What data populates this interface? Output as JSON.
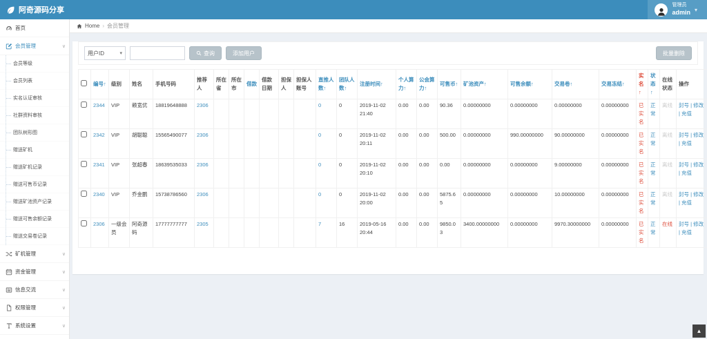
{
  "colors": {
    "navbar": "#3c8dbc",
    "link": "#3c8dbc",
    "danger": "#dd4b39",
    "offline_gray": "#cccccc",
    "button_gray": "#b7c3ca",
    "content_bg": "#ecf0f5"
  },
  "navbar": {
    "brand": "阿奇源码分享",
    "logo_icon": "leaf-icon",
    "user": {
      "role": "管理员",
      "name": "admin",
      "caret": "▾",
      "avatar_icon": "user-icon"
    }
  },
  "sidebar": {
    "collapse_glyph": "«",
    "items": [
      {
        "label": "首页",
        "icon": "dashboard",
        "caret": false,
        "active": false
      },
      {
        "label": "会员管理",
        "icon": "edit",
        "caret": true,
        "active": true,
        "expanded": true,
        "children": [
          "会员等级",
          "会员列表",
          "实名认证审核",
          "社群资料审核",
          "团队树形图",
          "赠送矿机",
          "赠送矿机记录",
          "赠送可售币记录",
          "赠送矿池资产记录",
          "赠送可售余额记录",
          "赠送交易卷记录"
        ]
      },
      {
        "label": "矿机管理",
        "icon": "shuffle",
        "caret": true,
        "active": false
      },
      {
        "label": "资金管理",
        "icon": "calendar",
        "caret": true,
        "active": false
      },
      {
        "label": "信息交流",
        "icon": "news",
        "caret": true,
        "active": false
      },
      {
        "label": "权限管理",
        "icon": "file",
        "caret": true,
        "active": false
      },
      {
        "label": "系统设置",
        "icon": "text",
        "caret": true,
        "active": false
      }
    ]
  },
  "breadcrumb": {
    "home_icon": "home-icon",
    "home_label": "Home",
    "separator": "›",
    "current": "会员管理"
  },
  "toolbar": {
    "filter": {
      "selected": "用户ID",
      "caret": "▾"
    },
    "search_value": "",
    "search_button_label": "查询",
    "search_icon": "search-icon",
    "add_button_label": "添加用户",
    "bulk_delete_label": "批量删除"
  },
  "table": {
    "headers": [
      {
        "label": "编号↑",
        "tone": "blue",
        "sortable": true
      },
      {
        "label": "级别",
        "tone": null,
        "sortable": false
      },
      {
        "label": "姓名",
        "tone": null,
        "sortable": false
      },
      {
        "label": "手机号码",
        "tone": null,
        "sortable": false
      },
      {
        "label": "推荐人",
        "tone": null,
        "sortable": false
      },
      {
        "label": "所在省",
        "tone": null,
        "sortable": false
      },
      {
        "label": "所在市",
        "tone": null,
        "sortable": false
      },
      {
        "label": "借款",
        "tone": "blue",
        "sortable": true
      },
      {
        "label": "借款日期",
        "tone": null,
        "sortable": false
      },
      {
        "label": "担保人",
        "tone": null,
        "sortable": false
      },
      {
        "label": "担保人账号",
        "tone": null,
        "sortable": false
      },
      {
        "label": "直推人数↑",
        "tone": "blue",
        "sortable": true
      },
      {
        "label": "团队人数↑",
        "tone": "blue",
        "sortable": true
      },
      {
        "label": "注册时间↑",
        "tone": "blue",
        "sortable": true
      },
      {
        "label": "个人算力↑",
        "tone": "blue",
        "sortable": true
      },
      {
        "label": "公会算力↑",
        "tone": "blue",
        "sortable": true
      },
      {
        "label": "可售币↑",
        "tone": "blue",
        "sortable": true
      },
      {
        "label": "矿池资产↑",
        "tone": "blue",
        "sortable": true
      },
      {
        "label": "可售余额↑",
        "tone": "blue",
        "sortable": true
      },
      {
        "label": "交易卷↑",
        "tone": "blue",
        "sortable": true
      },
      {
        "label": "交易冻结↑",
        "tone": "blue",
        "sortable": true
      },
      {
        "label": "实名↑",
        "tone": "red",
        "sortable": true
      },
      {
        "label": "状态↑",
        "tone": "blue",
        "sortable": true
      },
      {
        "label": "在线状态",
        "tone": null,
        "sortable": false
      },
      {
        "label": "操作",
        "tone": null,
        "sortable": false
      }
    ],
    "action_labels": [
      "封号",
      "修改",
      "充值"
    ],
    "action_separator": "|",
    "rows": [
      {
        "id": "2344",
        "level": "VIP",
        "name": "赖宽优",
        "phone": "18819648888",
        "referrer": "2306",
        "province": "",
        "city": "",
        "loan": "",
        "loan_date": "",
        "guarantor": "",
        "guarantor_account": "",
        "direct_count": "0",
        "team_count": "0",
        "reg_time": "2019-11-02 21:40",
        "personal_power": "0.00",
        "guild_power": "0.00",
        "sellable_coin": "90.36",
        "pool_assets": "0.00000000",
        "sellable_balance": "0.00000000",
        "trade_ticket": "0.00000000",
        "trade_frozen": "0.00000000",
        "realname": "已实名",
        "status": "正常",
        "online": "离线"
      },
      {
        "id": "2342",
        "level": "VIP",
        "name": "胡聪聪",
        "phone": "15565490077",
        "referrer": "2306",
        "province": "",
        "city": "",
        "loan": "",
        "loan_date": "",
        "guarantor": "",
        "guarantor_account": "",
        "direct_count": "0",
        "team_count": "0",
        "reg_time": "2019-11-02 20:11",
        "personal_power": "0.00",
        "guild_power": "0.00",
        "sellable_coin": "500.00",
        "pool_assets": "0.00000000",
        "sellable_balance": "990.00000000",
        "trade_ticket": "90.00000000",
        "trade_frozen": "0.00000000",
        "realname": "已实名",
        "status": "正常",
        "online": "离线"
      },
      {
        "id": "2341",
        "level": "VIP",
        "name": "张超春",
        "phone": "18639535033",
        "referrer": "2306",
        "province": "",
        "city": "",
        "loan": "",
        "loan_date": "",
        "guarantor": "",
        "guarantor_account": "",
        "direct_count": "0",
        "team_count": "0",
        "reg_time": "2019-11-02 20:10",
        "personal_power": "0.00",
        "guild_power": "0.00",
        "sellable_coin": "0.00",
        "pool_assets": "0.00000000",
        "sellable_balance": "0.00000000",
        "trade_ticket": "9.00000000",
        "trade_frozen": "0.00000000",
        "realname": "已实名",
        "status": "正常",
        "online": "离线"
      },
      {
        "id": "2340",
        "level": "VIP",
        "name": "乔金鹏",
        "phone": "15738786560",
        "referrer": "2306",
        "province": "",
        "city": "",
        "loan": "",
        "loan_date": "",
        "guarantor": "",
        "guarantor_account": "",
        "direct_count": "0",
        "team_count": "0",
        "reg_time": "2019-11-02 20:00",
        "personal_power": "0.00",
        "guild_power": "0.00",
        "sellable_coin": "5875.65",
        "pool_assets": "0.00000000",
        "sellable_balance": "0.00000000",
        "trade_ticket": "10.00000000",
        "trade_frozen": "0.00000000",
        "realname": "已实名",
        "status": "正常",
        "online": "离线"
      },
      {
        "id": "2306",
        "level": "一级会员",
        "name": "阿奇源码",
        "phone": "17777777777",
        "referrer": "2305",
        "province": "",
        "city": "",
        "loan": "",
        "loan_date": "",
        "guarantor": "",
        "guarantor_account": "",
        "direct_count": "7",
        "team_count": "16",
        "reg_time": "2019-05-16 20:44",
        "personal_power": "0.00",
        "guild_power": "0.00",
        "sellable_coin": "9850.03",
        "pool_assets": "3400.00000000",
        "sellable_balance": "0.00000000",
        "trade_ticket": "9970.30000000",
        "trade_frozen": "0.00000000",
        "realname": "已实名",
        "status": "正常",
        "online": "在线"
      }
    ]
  },
  "misc": {
    "back_to_top_glyph": "▲",
    "back_to_top_icon": "up-arrow-icon"
  }
}
